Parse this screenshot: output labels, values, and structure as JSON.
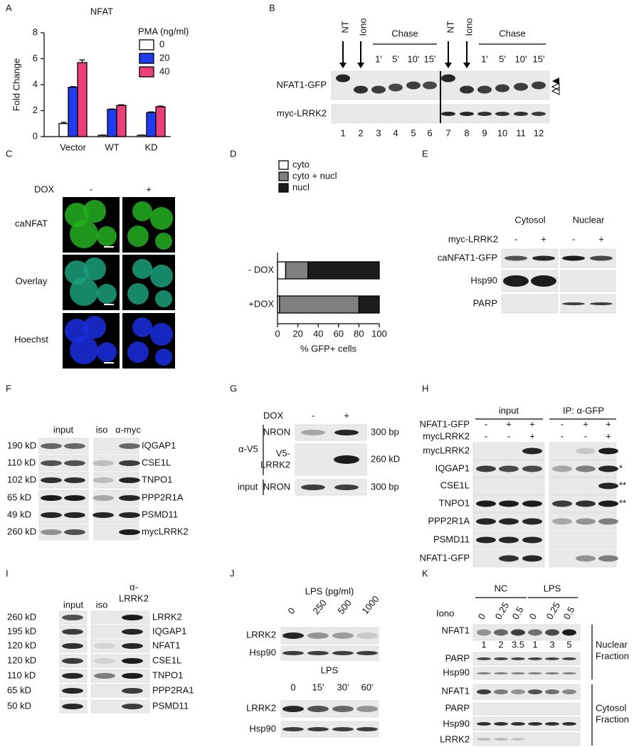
{
  "chart_data": [
    {
      "type": "bar",
      "panel": "A",
      "title": "NFAT",
      "y_label": "Fold Change",
      "legend_title": "PMA (ng/ml)",
      "categories": [
        "Vector",
        "WT",
        "KD"
      ],
      "series": [
        {
          "name": "0",
          "color": "#ffffff",
          "values": [
            1.0,
            0.1,
            0.1
          ],
          "errors": [
            0.1,
            0.02,
            0.02
          ]
        },
        {
          "name": "20",
          "color": "#1f3cf0",
          "values": [
            3.8,
            2.1,
            1.85
          ],
          "errors": [
            0.05,
            0.03,
            0.05
          ]
        },
        {
          "name": "40",
          "color": "#ea3f7a",
          "values": [
            5.7,
            2.4,
            2.3
          ],
          "errors": [
            0.2,
            0.05,
            0.05
          ]
        }
      ],
      "ylim": [
        0,
        8
      ],
      "yticks": [
        0,
        2,
        4,
        6,
        8
      ],
      "legend": "upper right"
    },
    {
      "type": "stacked_barh",
      "panel": "D",
      "x_label": "% GFP+ cells",
      "categories": [
        "- DOX",
        "+DOX"
      ],
      "series": [
        {
          "name": "cyto",
          "color": "#ffffff",
          "values": [
            8,
            2
          ]
        },
        {
          "name": "cyto + nucl",
          "color": "#808080",
          "values": [
            22,
            78
          ]
        },
        {
          "name": "nucl",
          "color": "#1c1c1c",
          "values": [
            70,
            20
          ]
        }
      ],
      "xlim": [
        0,
        100
      ],
      "xticks": [
        0,
        20,
        40,
        60,
        80,
        100
      ],
      "legend": "upper left"
    }
  ],
  "panels": {
    "B": {
      "label": "B",
      "treatments": [
        "NT",
        "Iono",
        "NT",
        "Iono"
      ],
      "chase": [
        "Chase",
        "Chase"
      ],
      "times": [
        "1'",
        "5'",
        "10'",
        "15'",
        "1'",
        "5'",
        "10'",
        "15'"
      ],
      "rows": [
        "NFAT1-GFP",
        "myc-LRRK2"
      ],
      "lanes": [
        "1",
        "2",
        "3",
        "4",
        "5",
        "6",
        "7",
        "8",
        "9",
        "10",
        "11",
        "12"
      ]
    },
    "C": {
      "label": "C",
      "treatment": "DOX",
      "signs": [
        "-",
        "+"
      ],
      "rows": [
        "caNFAT",
        "Overlay",
        "Hoechst"
      ]
    },
    "E": {
      "label": "E",
      "fractions": [
        "Cytosol",
        "Nuclear"
      ],
      "treatment": "myc-LRRK2",
      "signs": [
        "-",
        "+",
        "-",
        "+"
      ],
      "rows": [
        "caNFAT1-GFP",
        "Hsp90",
        "PARP"
      ]
    },
    "F": {
      "label": "F",
      "headers": [
        "input",
        "iso",
        "α-myc"
      ],
      "sizes": [
        "190 kD",
        "110 kD",
        "102 kD",
        "65 kD",
        "49 kD",
        "260 kD"
      ],
      "rows": [
        "IQGAP1",
        "CSE1L",
        "TNPO1",
        "PPP2R1A",
        "PSMD11",
        "mycLRRK2"
      ]
    },
    "G": {
      "label": "G",
      "treatment": "DOX",
      "signs": [
        "-",
        "+"
      ],
      "antibody": "α-V5",
      "input": "input",
      "rows": [
        "NRON",
        "V5-",
        "LRRK2",
        "NRON"
      ],
      "sizes": [
        "300 bp",
        "260 kD",
        "300 bp"
      ]
    },
    "H": {
      "label": "H",
      "headers": [
        "input",
        "IP: α-GFP"
      ],
      "conditions": [
        {
          "name": "NFAT1-GFP",
          "signs": [
            "-",
            "+",
            "+",
            "-",
            "+",
            "+"
          ]
        },
        {
          "name": "mycLRRK2",
          "signs": [
            "-",
            "-",
            "+",
            "-",
            "-",
            "+"
          ]
        }
      ],
      "rows": [
        "mycLRRK2",
        "IQGAP1",
        "CSE1L",
        "TNPO1",
        "PPP2R1A",
        "PSMD11",
        "NFAT1-GFP"
      ],
      "marks": [
        null,
        "*",
        "**",
        "**",
        null,
        null,
        null
      ]
    },
    "I": {
      "label": "I",
      "headers": [
        "input",
        "iso",
        "α-",
        "LRRK2"
      ],
      "sizes": [
        "260 kD",
        "195 kD",
        "120 kD",
        "120 kD",
        "110 kD",
        "65 kD",
        "50 kD"
      ],
      "rows": [
        "LRRK2",
        "IQGAP1",
        "NFAT1",
        "CSE1L",
        "TNPO1",
        "PPP2RA1",
        "PSMD11"
      ]
    },
    "J": {
      "label": "J",
      "dose_title": "LPS (pg/ml)",
      "doses": [
        "0",
        "250",
        "500",
        "1000"
      ],
      "time_title": "LPS",
      "times": [
        "0",
        "15'",
        "30'",
        "60'"
      ],
      "rows": [
        "LRRK2",
        "Hsp90",
        "LRRK2",
        "Hsp90"
      ]
    },
    "K": {
      "label": "K",
      "groups": [
        "NC",
        "LPS"
      ],
      "treatment": "Iono",
      "doses": [
        "0",
        "0.25",
        "0.5",
        "0",
        "0.25",
        "0.5"
      ],
      "nuclear_rows": [
        "NFAT1",
        "PARP",
        "Hsp90"
      ],
      "quantification": [
        1,
        2,
        3.5,
        1,
        3,
        5
      ],
      "nuclear_label": [
        "Nuclear",
        "Fraction"
      ],
      "cytosol_rows": [
        "NFAT1",
        "PARP",
        "Hsp90",
        "LRRK2"
      ],
      "cytosol_label": [
        "Cytosol",
        "Fraction"
      ]
    }
  }
}
